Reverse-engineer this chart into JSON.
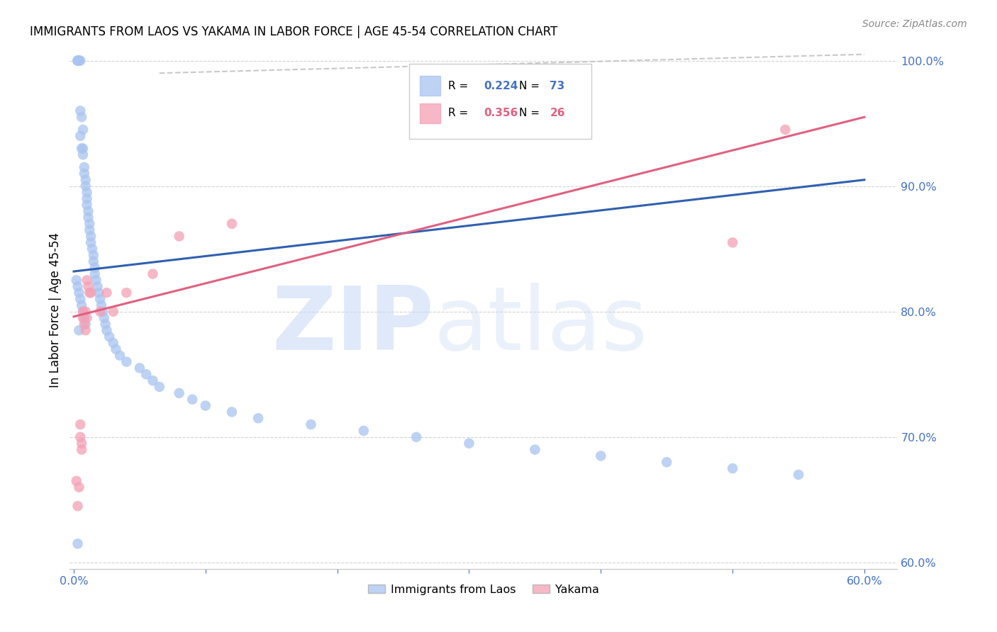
{
  "title": "IMMIGRANTS FROM LAOS VS YAKAMA IN LABOR FORCE | AGE 45-54 CORRELATION CHART",
  "source": "Source: ZipAtlas.com",
  "ylabel": "In Labor Force | Age 45-54",
  "xmin": -0.003,
  "xmax": 0.625,
  "ymin": 0.595,
  "ymax": 1.008,
  "xtick_vals": [
    0.0,
    0.1,
    0.2,
    0.3,
    0.4,
    0.5,
    0.6
  ],
  "xtick_labels": [
    "0.0%",
    "",
    "",
    "",
    "",
    "",
    "60.0%"
  ],
  "ytick_vals": [
    0.6,
    0.7,
    0.8,
    0.9,
    1.0
  ],
  "ytick_labels": [
    "60.0%",
    "70.0%",
    "80.0%",
    "90.0%",
    "100.0%"
  ],
  "axis_color": "#4472c4",
  "blue_color": "#a8c4f0",
  "pink_color": "#f4a0b5",
  "line_blue": "#3060b0",
  "line_pink": "#e06080",
  "dash_color": "#c0c0c0",
  "legend_R_blue": "0.224",
  "legend_N_blue": "73",
  "legend_R_pink": "0.356",
  "legend_N_pink": "26",
  "blue_x": [
    0.003,
    0.003,
    0.003,
    0.004,
    0.004,
    0.005,
    0.005,
    0.005,
    0.006,
    0.006,
    0.007,
    0.007,
    0.007,
    0.008,
    0.008,
    0.009,
    0.009,
    0.01,
    0.01,
    0.01,
    0.011,
    0.011,
    0.012,
    0.012,
    0.013,
    0.013,
    0.014,
    0.015,
    0.015,
    0.016,
    0.016,
    0.017,
    0.018,
    0.019,
    0.02,
    0.021,
    0.022,
    0.023,
    0.024,
    0.025,
    0.027,
    0.03,
    0.032,
    0.035,
    0.04,
    0.05,
    0.055,
    0.06,
    0.065,
    0.08,
    0.09,
    0.1,
    0.12,
    0.14,
    0.18,
    0.22,
    0.26,
    0.3,
    0.35,
    0.4,
    0.45,
    0.5,
    0.55,
    0.002,
    0.003,
    0.004,
    0.005,
    0.006,
    0.007,
    0.008,
    0.009,
    0.004,
    0.003
  ],
  "blue_y": [
    1.0,
    1.0,
    1.0,
    1.0,
    1.0,
    1.0,
    0.96,
    0.94,
    0.955,
    0.93,
    0.945,
    0.93,
    0.925,
    0.915,
    0.91,
    0.905,
    0.9,
    0.895,
    0.89,
    0.885,
    0.88,
    0.875,
    0.87,
    0.865,
    0.86,
    0.855,
    0.85,
    0.845,
    0.84,
    0.835,
    0.83,
    0.825,
    0.82,
    0.815,
    0.81,
    0.805,
    0.8,
    0.795,
    0.79,
    0.785,
    0.78,
    0.775,
    0.77,
    0.765,
    0.76,
    0.755,
    0.75,
    0.745,
    0.74,
    0.735,
    0.73,
    0.725,
    0.72,
    0.715,
    0.71,
    0.705,
    0.7,
    0.695,
    0.69,
    0.685,
    0.68,
    0.675,
    0.67,
    0.825,
    0.82,
    0.815,
    0.81,
    0.805,
    0.8,
    0.795,
    0.79,
    0.785,
    0.615
  ],
  "pink_x": [
    0.002,
    0.003,
    0.004,
    0.005,
    0.005,
    0.006,
    0.006,
    0.007,
    0.007,
    0.008,
    0.009,
    0.009,
    0.01,
    0.01,
    0.011,
    0.012,
    0.013,
    0.02,
    0.025,
    0.03,
    0.04,
    0.06,
    0.08,
    0.12,
    0.5,
    0.54
  ],
  "pink_y": [
    0.665,
    0.645,
    0.66,
    0.71,
    0.7,
    0.695,
    0.69,
    0.8,
    0.795,
    0.79,
    0.785,
    0.8,
    0.795,
    0.825,
    0.82,
    0.815,
    0.815,
    0.8,
    0.815,
    0.8,
    0.815,
    0.83,
    0.86,
    0.87,
    0.855,
    0.945
  ],
  "blue_line_x": [
    0.0,
    0.6
  ],
  "blue_line_y": [
    0.832,
    0.905
  ],
  "pink_line_x": [
    0.0,
    0.6
  ],
  "pink_line_y": [
    0.796,
    0.955
  ],
  "dash_line_x": [
    0.065,
    0.6
  ],
  "dash_line_y": [
    0.99,
    1.005
  ]
}
